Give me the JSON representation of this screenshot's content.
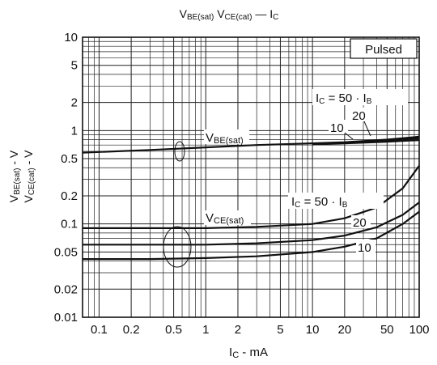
{
  "chart_data": {
    "type": "line",
    "title": "VBE(sat)  VCE(cat) — IC",
    "title_parts": {
      "v1": "V",
      "v1_sub": "BE(sat)",
      "v2": "V",
      "v2_sub": "CE(cat)",
      "dash": "—",
      "v3": "I",
      "v3_sub": "C"
    },
    "xlabel": "IC - mA",
    "xlabel_parts": {
      "main": "I",
      "sub": "C",
      "rest": " - mA"
    },
    "ylabel_line1": {
      "main": "V",
      "sub": "BE(sat)",
      "rest": " - V"
    },
    "ylabel_line2": {
      "main": "V",
      "sub": "CE(cat)",
      "rest": " - V"
    },
    "x_scale": "log",
    "y_scale": "log",
    "xlim": [
      0.07,
      100
    ],
    "ylim": [
      0.01,
      10
    ],
    "grid": true,
    "x_ticks": [
      {
        "v": 0.1,
        "label": "0.1"
      },
      {
        "v": 0.2,
        "label": "0.2"
      },
      {
        "v": 0.5,
        "label": "0.5"
      },
      {
        "v": 1,
        "label": "1"
      },
      {
        "v": 2,
        "label": "2"
      },
      {
        "v": 5,
        "label": "5"
      },
      {
        "v": 10,
        "label": "10"
      },
      {
        "v": 20,
        "label": "20"
      },
      {
        "v": 50,
        "label": "50"
      },
      {
        "v": 100,
        "label": "100"
      }
    ],
    "y_ticks": [
      {
        "v": 10,
        "label": "10"
      },
      {
        "v": 5,
        "label": "5"
      },
      {
        "v": 2,
        "label": "2"
      },
      {
        "v": 1,
        "label": "1"
      },
      {
        "v": 0.5,
        "label": "0.5"
      },
      {
        "v": 0.2,
        "label": "0.2"
      },
      {
        "v": 0.1,
        "label": "0.1"
      },
      {
        "v": 0.05,
        "label": "0.05"
      },
      {
        "v": 0.02,
        "label": "0.02"
      },
      {
        "v": 0.01,
        "label": "0.01"
      }
    ],
    "annotations": {
      "pulsed": "Pulsed",
      "vbe_label": {
        "main": "V",
        "sub": "BE(sat)"
      },
      "vce_label": {
        "main": "V",
        "sub": "CE(sat)"
      },
      "vbe_ratio": "IC = 50 · IB",
      "vce_ratio": "IC = 50 · IB",
      "vbe_10": "10",
      "vbe_20": "20",
      "vce_20": "20",
      "vce_10": "10"
    },
    "series": [
      {
        "group": "VBE(sat)",
        "ratio": "10",
        "x": [
          0.07,
          0.1,
          0.3,
          1,
          3,
          10,
          20,
          50,
          100
        ],
        "y": [
          0.58,
          0.59,
          0.62,
          0.66,
          0.7,
          0.73,
          0.75,
          0.8,
          0.86
        ]
      },
      {
        "group": "VBE(sat)",
        "ratio": "20",
        "x": [
          10,
          20,
          50,
          100
        ],
        "y": [
          0.72,
          0.74,
          0.78,
          0.83
        ]
      },
      {
        "group": "VBE(sat)",
        "ratio": "50",
        "x": [
          10,
          20,
          50,
          100
        ],
        "y": [
          0.71,
          0.73,
          0.76,
          0.79
        ]
      },
      {
        "group": "VCE(sat)",
        "ratio": "50",
        "x": [
          0.07,
          0.3,
          1,
          3,
          10,
          20,
          40,
          70,
          100
        ],
        "y": [
          0.09,
          0.09,
          0.09,
          0.093,
          0.1,
          0.115,
          0.15,
          0.24,
          0.42
        ]
      },
      {
        "group": "VCE(sat)",
        "ratio": "20",
        "x": [
          0.07,
          0.3,
          1,
          3,
          10,
          20,
          40,
          70,
          100
        ],
        "y": [
          0.06,
          0.06,
          0.06,
          0.062,
          0.067,
          0.075,
          0.092,
          0.125,
          0.17
        ]
      },
      {
        "group": "VCE(sat)",
        "ratio": "10",
        "x": [
          0.07,
          0.3,
          1,
          3,
          10,
          20,
          40,
          70,
          100
        ],
        "y": [
          0.042,
          0.042,
          0.043,
          0.045,
          0.05,
          0.057,
          0.07,
          0.1,
          0.135
        ]
      }
    ]
  }
}
